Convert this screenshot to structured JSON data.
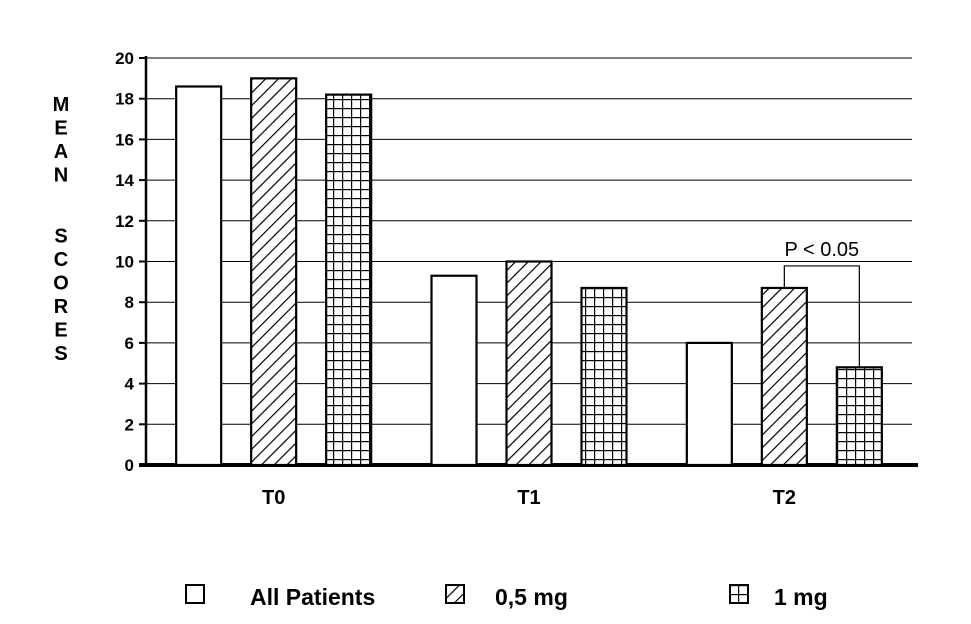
{
  "chart_data": {
    "type": "bar",
    "ylabel": "MEAN SCORES",
    "ylabel_words": [
      "MEAN",
      "SCORES"
    ],
    "ylim": [
      0,
      20
    ],
    "yticks": [
      0,
      2,
      4,
      6,
      8,
      10,
      12,
      14,
      16,
      18,
      20
    ],
    "grid": true,
    "categories": [
      "T0",
      "T1",
      "T2"
    ],
    "series": [
      {
        "name": "All Patients",
        "pattern": "empty",
        "values": [
          18.6,
          9.3,
          6.0
        ]
      },
      {
        "name": "0,5 mg",
        "pattern": "diagonal-hatch",
        "values": [
          19.0,
          10.0,
          8.7
        ]
      },
      {
        "name": "1 mg",
        "pattern": "grid-hatch",
        "values": [
          18.2,
          8.7,
          4.8
        ]
      }
    ],
    "annotations": [
      {
        "text": "P < 0.05",
        "category": "T2",
        "between_series": [
          "0,5 mg",
          "1 mg"
        ]
      }
    ],
    "legend_position": "bottom"
  }
}
